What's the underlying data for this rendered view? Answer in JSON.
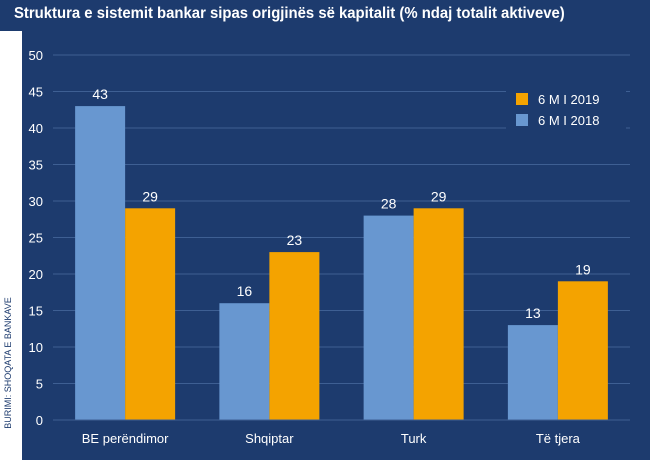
{
  "colors": {
    "background": "#1d3b6e",
    "gridline": "#3e5f93",
    "bar_2018": "#6897d0",
    "bar_2019": "#f4a300",
    "text": "#ffffff"
  },
  "source_label": "BURIMI: SHOQATA E BANKAVE",
  "chart_data": {
    "type": "bar",
    "title": "Struktura e sistemit bankar sipas origjinës së kapitalit (% ndaj totalit aktiveve)",
    "xlabel": "",
    "ylabel": "",
    "categories": [
      "BE perëndimor",
      "Shqiptar",
      "Turk",
      "Të tjera"
    ],
    "series": [
      {
        "name": "6 M I 2018",
        "color": "#6897d0",
        "values": [
          43,
          16,
          28,
          13
        ]
      },
      {
        "name": "6 M I 2019",
        "color": "#f4a300",
        "values": [
          29,
          23,
          29,
          19
        ]
      }
    ],
    "value_labels": [
      [
        "43",
        "16",
        "28",
        "13"
      ],
      [
        "29",
        "23",
        "29",
        "19"
      ]
    ],
    "ylim": [
      0,
      50
    ],
    "yticks": [
      "0",
      "5",
      "10",
      "15",
      "20",
      "25",
      "30",
      "35",
      "40",
      "45",
      "50"
    ],
    "grid": true,
    "legend_position": "top-right",
    "legend_order": [
      "6 M I 2019",
      "6 M I 2018"
    ]
  }
}
